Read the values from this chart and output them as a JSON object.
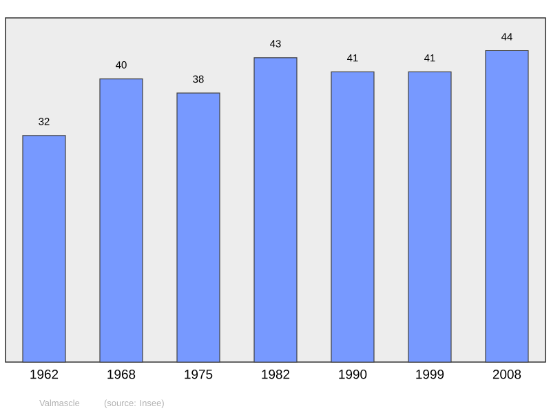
{
  "chart_data": {
    "type": "bar",
    "categories": [
      "1962",
      "1968",
      "1975",
      "1982",
      "1990",
      "1999",
      "2008"
    ],
    "values": [
      32,
      40,
      38,
      43,
      41,
      41,
      44
    ],
    "color": "#7799ff",
    "data_labels": true,
    "annotations": [
      "Valmascle",
      "(source: Insee)"
    ]
  }
}
